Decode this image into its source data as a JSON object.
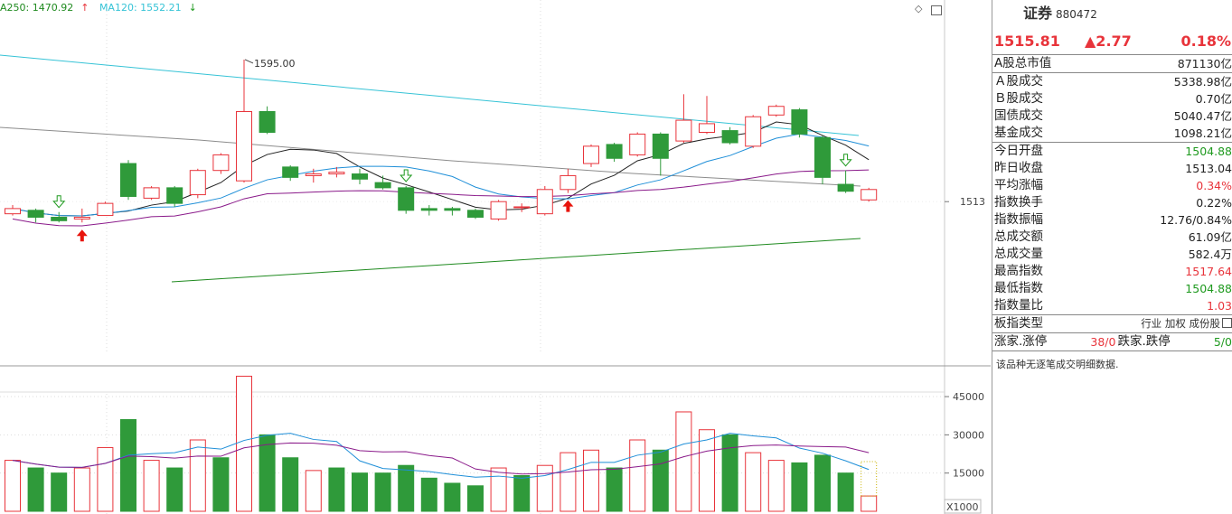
{
  "legend": {
    "ma250": "A250: 1470.92",
    "ma250_arrow": "↑",
    "ma120": "MA120: 1552.21",
    "ma120_arrow": "↓"
  },
  "axis": {
    "price_label": "1513",
    "vol_labels": [
      "45000",
      "30000",
      "15000"
    ],
    "vol_unit": "X1000",
    "peak_label": "1595.00"
  },
  "candles": [
    {
      "o": 1506,
      "c": 1509,
      "h": 1511,
      "l": 1505
    },
    {
      "o": 1508,
      "c": 1504,
      "h": 1509,
      "l": 1501
    },
    {
      "o": 1504,
      "c": 1502,
      "h": 1507,
      "l": 1501
    },
    {
      "o": 1503,
      "c": 1504,
      "h": 1509,
      "l": 1501
    },
    {
      "o": 1505,
      "c": 1512,
      "h": 1513,
      "l": 1505
    },
    {
      "o": 1535,
      "c": 1516,
      "h": 1537,
      "l": 1514
    },
    {
      "o": 1515,
      "c": 1521,
      "h": 1522,
      "l": 1514
    },
    {
      "o": 1521,
      "c": 1512,
      "h": 1522,
      "l": 1510
    },
    {
      "o": 1517,
      "c": 1531,
      "h": 1532,
      "l": 1515
    },
    {
      "o": 1531,
      "c": 1540,
      "h": 1541,
      "l": 1529
    },
    {
      "o": 1525,
      "c": 1565,
      "h": 1595,
      "l": 1524
    },
    {
      "o": 1565,
      "c": 1553,
      "h": 1568,
      "l": 1552
    },
    {
      "o": 1533,
      "c": 1527,
      "h": 1534,
      "l": 1525
    },
    {
      "o": 1528,
      "c": 1529,
      "h": 1532,
      "l": 1524
    },
    {
      "o": 1529,
      "c": 1530,
      "h": 1533,
      "l": 1527
    },
    {
      "o": 1529,
      "c": 1526,
      "h": 1532,
      "l": 1523
    },
    {
      "o": 1524,
      "c": 1521,
      "h": 1528,
      "l": 1520
    },
    {
      "o": 1521,
      "c": 1508,
      "h": 1522,
      "l": 1506
    },
    {
      "o": 1509,
      "c": 1508,
      "h": 1511,
      "l": 1505
    },
    {
      "o": 1509,
      "c": 1508,
      "h": 1510,
      "l": 1505
    },
    {
      "o": 1508,
      "c": 1504,
      "h": 1509,
      "l": 1503
    },
    {
      "o": 1503,
      "c": 1513,
      "h": 1514,
      "l": 1502
    },
    {
      "o": 1510,
      "c": 1510,
      "h": 1512,
      "l": 1507
    },
    {
      "o": 1506,
      "c": 1520,
      "h": 1522,
      "l": 1505
    },
    {
      "o": 1520,
      "c": 1528,
      "h": 1532,
      "l": 1518
    },
    {
      "o": 1535,
      "c": 1545,
      "h": 1546,
      "l": 1533
    },
    {
      "o": 1546,
      "c": 1538,
      "h": 1547,
      "l": 1536
    },
    {
      "o": 1540,
      "c": 1552,
      "h": 1553,
      "l": 1539
    },
    {
      "o": 1552,
      "c": 1538,
      "h": 1553,
      "l": 1528
    },
    {
      "o": 1548,
      "c": 1560,
      "h": 1575,
      "l": 1547
    },
    {
      "o": 1553,
      "c": 1558,
      "h": 1574,
      "l": 1552
    },
    {
      "o": 1554,
      "c": 1547,
      "h": 1556,
      "l": 1546
    },
    {
      "o": 1545,
      "c": 1562,
      "h": 1563,
      "l": 1544
    },
    {
      "o": 1563,
      "c": 1568,
      "h": 1569,
      "l": 1562
    },
    {
      "o": 1566,
      "c": 1552,
      "h": 1567,
      "l": 1550
    },
    {
      "o": 1550,
      "c": 1527,
      "h": 1551,
      "l": 1523
    },
    {
      "o": 1523,
      "c": 1519,
      "h": 1531,
      "l": 1518
    },
    {
      "o": 1514,
      "c": 1520,
      "h": 1521,
      "l": 1513
    }
  ],
  "volumes": [
    20000,
    17000,
    15000,
    17000,
    25000,
    36000,
    20000,
    17000,
    28000,
    21000,
    53000,
    30000,
    21000,
    16000,
    17000,
    15000,
    15000,
    18000,
    13000,
    11000,
    10000,
    17000,
    14000,
    18000,
    23000,
    24000,
    17000,
    28000,
    24000,
    39000,
    32000,
    30000,
    23000,
    20000,
    19000,
    22000,
    15000,
    6000
  ],
  "volume_up": [
    true,
    false,
    false,
    true,
    true,
    false,
    true,
    false,
    true,
    false,
    true,
    false,
    false,
    true,
    false,
    false,
    false,
    false,
    false,
    false,
    false,
    true,
    false,
    true,
    true,
    true,
    false,
    true,
    false,
    true,
    true,
    false,
    true,
    true,
    false,
    false,
    false,
    true
  ],
  "markers": {
    "buy": [
      3,
      24
    ],
    "sell": [
      2,
      17,
      36
    ]
  },
  "colors": {
    "up": "#e8343b",
    "down": "#2f9a3a",
    "ma_black": "#222222",
    "ma_blue": "#1f8fd8",
    "ma_purple": "#8a1a8a",
    "ma_gray": "#8c8c8c",
    "ma250": "#1f8a1f",
    "ma120": "#36c3d6"
  },
  "panel": {
    "name": "证券",
    "code": "880472",
    "price": "1515.81",
    "change": "▲2.77",
    "change_pct": "0.18%",
    "rows_a": [
      {
        "label": "A股总市值",
        "value": "871130亿",
        "cls": "dark"
      }
    ],
    "rows_b": [
      {
        "label": "Ａ股成交",
        "value": "5338.98亿",
        "cls": "dark"
      },
      {
        "label": "Ｂ股成交",
        "value": "0.70亿",
        "cls": "dark"
      },
      {
        "label": "国债成交",
        "value": "5040.47亿",
        "cls": "dark"
      },
      {
        "label": "基金成交",
        "value": "1098.21亿",
        "cls": "dark"
      }
    ],
    "rows_c": [
      {
        "label": "今日开盘",
        "value": "1504.88",
        "cls": "green"
      },
      {
        "label": "昨日收盘",
        "value": "1513.04",
        "cls": "dark"
      },
      {
        "label": "平均涨幅",
        "value": "0.34%",
        "cls": "red"
      },
      {
        "label": "指数换手",
        "value": "0.22%",
        "cls": "dark"
      },
      {
        "label": "指数振幅",
        "value": "12.76/0.84%",
        "cls": "dark"
      },
      {
        "label": "总成交额",
        "value": "61.09亿",
        "cls": "dark"
      },
      {
        "label": "总成交量",
        "value": "582.4万",
        "cls": "dark"
      },
      {
        "label": "最高指数",
        "value": "1517.64",
        "cls": "red"
      },
      {
        "label": "最低指数",
        "value": "1504.88",
        "cls": "green"
      },
      {
        "label": "指数量比",
        "value": "1.03",
        "cls": "red"
      }
    ],
    "board_label": "板指类型",
    "board_value": "行业 加权 成份股",
    "rise_label": "涨家.涨停",
    "rise_value": "38/0",
    "fall_label": "跌家.跌停",
    "fall_value": "5/0",
    "note": "该品种无逐笔成交明细数据."
  }
}
